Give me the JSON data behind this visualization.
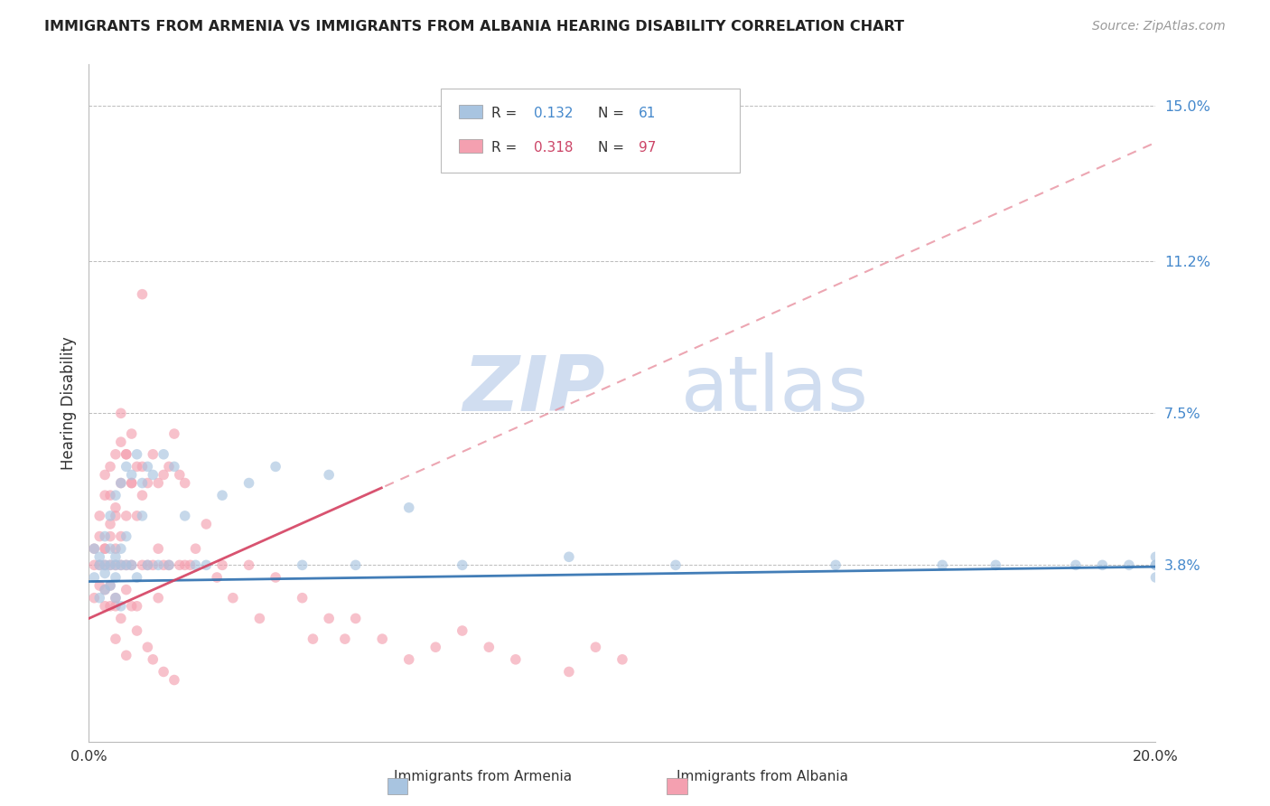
{
  "title": "IMMIGRANTS FROM ARMENIA VS IMMIGRANTS FROM ALBANIA HEARING DISABILITY CORRELATION CHART",
  "source": "Source: ZipAtlas.com",
  "ylabel": "Hearing Disability",
  "xlim": [
    0.0,
    0.2
  ],
  "ylim": [
    -0.005,
    0.16
  ],
  "yticks": [
    0.038,
    0.075,
    0.112,
    0.15
  ],
  "ytick_labels": [
    "3.8%",
    "7.5%",
    "11.2%",
    "15.0%"
  ],
  "xticks": [
    0.0,
    0.05,
    0.1,
    0.15,
    0.2
  ],
  "xtick_labels": [
    "0.0%",
    "",
    "",
    "",
    "20.0%"
  ],
  "color_armenia": "#a8c4e0",
  "color_albania": "#f4a0b0",
  "trendline_armenia_color": "#2d6faf",
  "trendline_albania_color": "#d44060",
  "trendline_albania_dashed_color": "#e8909f",
  "watermark_zip": "ZIP",
  "watermark_atlas": "atlas",
  "watermark_color": "#d0ddf0",
  "armenia_r": "0.132",
  "armenia_n": "61",
  "albania_r": "0.318",
  "albania_n": "97",
  "arm_x": [
    0.001,
    0.001,
    0.002,
    0.002,
    0.002,
    0.003,
    0.003,
    0.003,
    0.003,
    0.004,
    0.004,
    0.004,
    0.004,
    0.005,
    0.005,
    0.005,
    0.005,
    0.005,
    0.006,
    0.006,
    0.006,
    0.006,
    0.007,
    0.007,
    0.007,
    0.008,
    0.008,
    0.009,
    0.009,
    0.01,
    0.01,
    0.011,
    0.011,
    0.012,
    0.013,
    0.014,
    0.015,
    0.016,
    0.018,
    0.02,
    0.022,
    0.025,
    0.03,
    0.035,
    0.04,
    0.045,
    0.05,
    0.06,
    0.07,
    0.09,
    0.11,
    0.14,
    0.16,
    0.17,
    0.185,
    0.19,
    0.195,
    0.2,
    0.2,
    0.2,
    0.2
  ],
  "arm_y": [
    0.035,
    0.042,
    0.038,
    0.04,
    0.03,
    0.038,
    0.045,
    0.032,
    0.036,
    0.042,
    0.05,
    0.038,
    0.033,
    0.055,
    0.04,
    0.038,
    0.035,
    0.03,
    0.058,
    0.038,
    0.042,
    0.028,
    0.062,
    0.045,
    0.038,
    0.06,
    0.038,
    0.065,
    0.035,
    0.058,
    0.05,
    0.062,
    0.038,
    0.06,
    0.038,
    0.065,
    0.038,
    0.062,
    0.05,
    0.038,
    0.038,
    0.055,
    0.058,
    0.062,
    0.038,
    0.06,
    0.038,
    0.052,
    0.038,
    0.04,
    0.038,
    0.038,
    0.038,
    0.038,
    0.038,
    0.038,
    0.038,
    0.038,
    0.035,
    0.038,
    0.04
  ],
  "alb_x": [
    0.001,
    0.001,
    0.001,
    0.002,
    0.002,
    0.002,
    0.002,
    0.003,
    0.003,
    0.003,
    0.003,
    0.003,
    0.004,
    0.004,
    0.004,
    0.004,
    0.004,
    0.005,
    0.005,
    0.005,
    0.005,
    0.005,
    0.005,
    0.006,
    0.006,
    0.006,
    0.006,
    0.007,
    0.007,
    0.007,
    0.007,
    0.008,
    0.008,
    0.008,
    0.009,
    0.009,
    0.009,
    0.01,
    0.01,
    0.01,
    0.011,
    0.011,
    0.012,
    0.012,
    0.013,
    0.013,
    0.013,
    0.014,
    0.014,
    0.015,
    0.015,
    0.016,
    0.017,
    0.017,
    0.018,
    0.018,
    0.019,
    0.02,
    0.022,
    0.024,
    0.025,
    0.027,
    0.03,
    0.032,
    0.035,
    0.04,
    0.042,
    0.045,
    0.048,
    0.05,
    0.055,
    0.06,
    0.065,
    0.07,
    0.075,
    0.08,
    0.09,
    0.095,
    0.1,
    0.01,
    0.006,
    0.007,
    0.008,
    0.004,
    0.003,
    0.005,
    0.006,
    0.008,
    0.009,
    0.011,
    0.012,
    0.014,
    0.016,
    0.003,
    0.004,
    0.005,
    0.007
  ],
  "alb_y": [
    0.038,
    0.042,
    0.03,
    0.045,
    0.038,
    0.05,
    0.033,
    0.055,
    0.038,
    0.042,
    0.06,
    0.028,
    0.062,
    0.038,
    0.045,
    0.055,
    0.033,
    0.065,
    0.038,
    0.05,
    0.042,
    0.028,
    0.03,
    0.068,
    0.058,
    0.038,
    0.025,
    0.065,
    0.05,
    0.038,
    0.032,
    0.07,
    0.058,
    0.038,
    0.062,
    0.05,
    0.028,
    0.062,
    0.055,
    0.038,
    0.058,
    0.038,
    0.065,
    0.038,
    0.058,
    0.042,
    0.03,
    0.06,
    0.038,
    0.062,
    0.038,
    0.07,
    0.06,
    0.038,
    0.058,
    0.038,
    0.038,
    0.042,
    0.048,
    0.035,
    0.038,
    0.03,
    0.038,
    0.025,
    0.035,
    0.03,
    0.02,
    0.025,
    0.02,
    0.025,
    0.02,
    0.015,
    0.018,
    0.022,
    0.018,
    0.015,
    0.012,
    0.018,
    0.015,
    0.104,
    0.075,
    0.065,
    0.058,
    0.048,
    0.042,
    0.052,
    0.045,
    0.028,
    0.022,
    0.018,
    0.015,
    0.012,
    0.01,
    0.032,
    0.028,
    0.02,
    0.016
  ]
}
